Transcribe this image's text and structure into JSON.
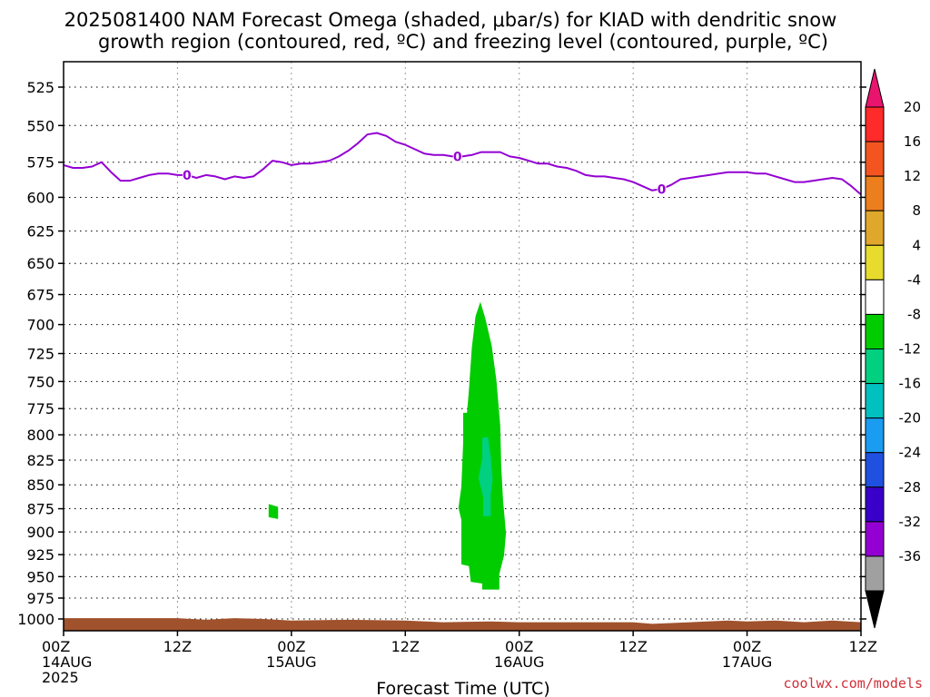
{
  "chart_data": {
    "type": "heatmap",
    "title_lines": [
      "2025081400 NAM Forecast Omega (shaded, μbar/s) for KIAD with dendritic snow",
      "growth region (contoured, red, ºC) and freezing level (contoured, purple, ºC)"
    ],
    "xlabel": "Forecast Time (UTC)",
    "credit": "coolwx.com/models",
    "x_range_hours": [
      0,
      84
    ],
    "y_range_hPa": [
      500,
      1013
    ],
    "y_ticks": [
      "525",
      "550",
      "575",
      "600",
      "625",
      "650",
      "675",
      "700",
      "725",
      "750",
      "775",
      "800",
      "825",
      "850",
      "875",
      "900",
      "925",
      "950",
      "975",
      "1000"
    ],
    "x_ticks": [
      {
        "hour": 0,
        "lines": [
          "00Z",
          "14AUG",
          "2025"
        ]
      },
      {
        "hour": 12,
        "lines": [
          "12Z"
        ]
      },
      {
        "hour": 24,
        "lines": [
          "00Z",
          "15AUG"
        ]
      },
      {
        "hour": 36,
        "lines": [
          "12Z"
        ]
      },
      {
        "hour": 48,
        "lines": [
          "00Z",
          "16AUG"
        ]
      },
      {
        "hour": 60,
        "lines": [
          "12Z"
        ]
      },
      {
        "hour": 72,
        "lines": [
          "00Z",
          "17AUG"
        ]
      },
      {
        "hour": 84,
        "lines": [
          "12Z"
        ]
      }
    ],
    "freezing_level": {
      "label": "0",
      "color": "#9400d3",
      "points": [
        [
          0,
          577
        ],
        [
          1,
          579
        ],
        [
          2,
          579
        ],
        [
          3,
          578
        ],
        [
          4,
          575
        ],
        [
          5,
          582
        ],
        [
          6,
          588
        ],
        [
          7,
          588
        ],
        [
          8,
          586
        ],
        [
          9,
          584
        ],
        [
          10,
          583
        ],
        [
          11,
          583
        ],
        [
          12,
          584
        ],
        [
          13,
          584
        ],
        [
          14,
          586
        ],
        [
          15,
          584
        ],
        [
          16,
          585
        ],
        [
          17,
          587
        ],
        [
          18,
          585
        ],
        [
          19,
          586
        ],
        [
          20,
          585
        ],
        [
          21,
          580
        ],
        [
          22,
          574
        ],
        [
          23,
          575
        ],
        [
          24,
          577
        ],
        [
          25,
          576
        ],
        [
          26,
          576
        ],
        [
          27,
          575
        ],
        [
          28,
          574
        ],
        [
          29,
          571
        ],
        [
          30,
          567
        ],
        [
          31,
          562
        ],
        [
          32,
          556
        ],
        [
          33,
          555
        ],
        [
          34,
          557
        ],
        [
          35,
          561
        ],
        [
          36,
          563
        ],
        [
          37,
          566
        ],
        [
          38,
          569
        ],
        [
          39,
          570
        ],
        [
          40,
          570
        ],
        [
          41,
          571
        ],
        [
          42,
          571
        ],
        [
          43,
          570
        ],
        [
          44,
          568
        ],
        [
          45,
          568
        ],
        [
          46,
          568
        ],
        [
          47,
          571
        ],
        [
          48,
          572
        ],
        [
          49,
          574
        ],
        [
          50,
          576
        ],
        [
          51,
          576
        ],
        [
          52,
          578
        ],
        [
          53,
          579
        ],
        [
          54,
          581
        ],
        [
          55,
          584
        ],
        [
          56,
          585
        ],
        [
          57,
          585
        ],
        [
          58,
          586
        ],
        [
          59,
          587
        ],
        [
          60,
          589
        ],
        [
          61,
          592
        ],
        [
          62,
          595
        ],
        [
          63,
          594
        ],
        [
          64,
          591
        ],
        [
          65,
          587
        ],
        [
          66,
          586
        ],
        [
          67,
          585
        ],
        [
          68,
          584
        ],
        [
          69,
          583
        ],
        [
          70,
          582
        ],
        [
          71,
          582
        ],
        [
          72,
          582
        ],
        [
          73,
          583
        ],
        [
          74,
          583
        ],
        [
          75,
          585
        ],
        [
          76,
          587
        ],
        [
          77,
          589
        ],
        [
          78,
          589
        ],
        [
          79,
          588
        ],
        [
          80,
          587
        ],
        [
          81,
          586
        ],
        [
          82,
          587
        ],
        [
          83,
          592
        ],
        [
          84,
          598
        ]
      ],
      "label_hours": [
        13,
        41.5,
        63
      ]
    },
    "omega_regions": [
      {
        "level": "-8 to -4",
        "color": "#00cc00",
        "points": [
          [
            44.1,
            965
          ],
          [
            45.9,
            965
          ],
          [
            45.9,
            947
          ],
          [
            46.4,
            926
          ],
          [
            46.6,
            901
          ],
          [
            46.3,
            866
          ],
          [
            46.1,
            831
          ],
          [
            46,
            791
          ],
          [
            45.6,
            749
          ],
          [
            45.1,
            718
          ],
          [
            44.4,
            694
          ],
          [
            43.9,
            681
          ],
          [
            43.4,
            693
          ],
          [
            43,
            720
          ],
          [
            42.7,
            758
          ],
          [
            42.5,
            779
          ],
          [
            42.1,
            779
          ],
          [
            42.1,
            807
          ],
          [
            41.9,
            852
          ],
          [
            41.6,
            874
          ],
          [
            41.9,
            887
          ],
          [
            41.9,
            936
          ],
          [
            42.7,
            938
          ],
          [
            42.9,
            956
          ],
          [
            44.1,
            958
          ]
        ]
      },
      {
        "level": "-12 to -8",
        "color": "#00d080",
        "points": [
          [
            44.2,
            883
          ],
          [
            45,
            883
          ],
          [
            45,
            860
          ],
          [
            45.2,
            845
          ],
          [
            45,
            821
          ],
          [
            44.7,
            802
          ],
          [
            44.1,
            803
          ],
          [
            44.1,
            823
          ],
          [
            43.7,
            843
          ],
          [
            44.2,
            863
          ]
        ]
      },
      {
        "level": "-8 to -4",
        "color": "#00cc00",
        "points": [
          [
            21.6,
            870
          ],
          [
            22.6,
            873
          ],
          [
            22.6,
            886
          ],
          [
            21.6,
            884
          ]
        ]
      }
    ],
    "terrain": {
      "color": "#a0522d",
      "points": [
        [
          0,
          999
        ],
        [
          6,
          999
        ],
        [
          12,
          999
        ],
        [
          15,
          1001
        ],
        [
          18,
          999
        ],
        [
          21,
          1000
        ],
        [
          24,
          1002
        ],
        [
          30,
          1001
        ],
        [
          36,
          1002
        ],
        [
          40,
          1004
        ],
        [
          45,
          1003
        ],
        [
          48,
          1004
        ],
        [
          54,
          1004
        ],
        [
          60,
          1004
        ],
        [
          62,
          1006
        ],
        [
          66,
          1004
        ],
        [
          70,
          1002
        ],
        [
          72,
          1003
        ],
        [
          75,
          1002
        ],
        [
          78,
          1004
        ],
        [
          81,
          1002
        ],
        [
          84,
          1004
        ]
      ]
    },
    "colorbar": {
      "labels": [
        "20",
        "16",
        "12",
        "8",
        "4",
        "-4",
        "-8",
        "-12",
        "-16",
        "-20",
        "-24",
        "-28",
        "-32",
        "-36"
      ],
      "top_triangle_color": "#e8146e",
      "bottom_triangle_color": "#000000",
      "segments": [
        "#ff2a2a",
        "#f45520",
        "#ec7e1e",
        "#dfa82c",
        "#e7dc2d",
        "#ffffff",
        "#00cc00",
        "#00d080",
        "#00c0c0",
        "#1a9cf0",
        "#2050e0",
        "#3800c8",
        "#9400d3",
        "#a0a0a0"
      ]
    }
  }
}
